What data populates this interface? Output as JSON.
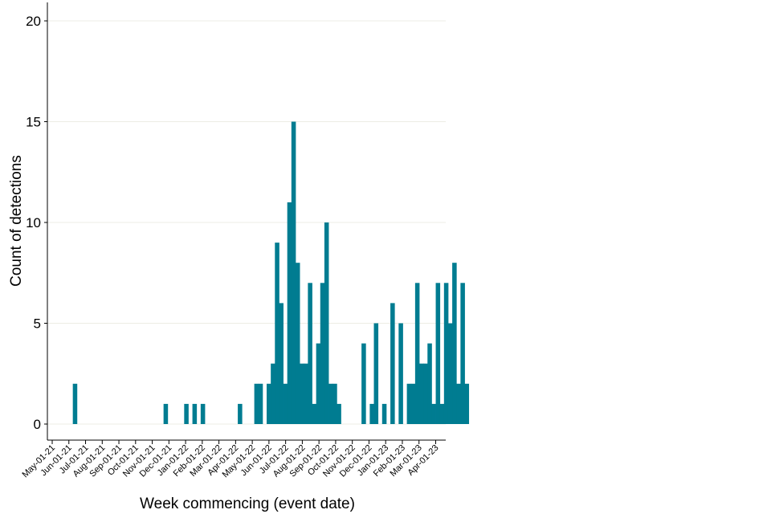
{
  "chart_data": {
    "type": "bar",
    "title": "",
    "xlabel": "Week commencing (event date)",
    "ylabel": "Count of detections",
    "ylim": [
      0,
      20
    ],
    "yticks": [
      0,
      5,
      10,
      15,
      20
    ],
    "grid": "horizontal",
    "bar_color": "#007C91",
    "x_tick_labels": [
      "May-01-21",
      "Jun-01-21",
      "Jul-01-21",
      "Aug-01-21",
      "Sep-01-21",
      "Oct-01-21",
      "Nov-01-21",
      "Dec-01-21",
      "Jan-01-22",
      "Feb-01-22",
      "Mar-01-22",
      "Apr-01-22",
      "May-01-22",
      "Jun-01-22",
      "Jul-01-22",
      "Aug-01-22",
      "Sep-01-22",
      "Oct-01-22",
      "Nov-01-22",
      "Dec-01-22",
      "Jan-01-23",
      "Feb-01-23",
      "Mar-01-23",
      "Apr-01-23"
    ],
    "series": [
      {
        "name": "Detections",
        "weekly_counts": [
          0,
          0,
          0,
          0,
          0,
          2,
          0,
          0,
          0,
          0,
          0,
          0,
          0,
          0,
          0,
          0,
          0,
          0,
          0,
          0,
          0,
          0,
          0,
          0,
          0,
          0,
          0,
          1,
          0,
          0,
          0,
          0,
          1,
          0,
          1,
          0,
          1,
          0,
          0,
          0,
          0,
          0,
          0,
          0,
          0,
          1,
          0,
          0,
          0,
          2,
          2,
          0,
          2,
          3,
          9,
          6,
          2,
          11,
          15,
          8,
          3,
          3,
          7,
          1,
          4,
          7,
          10,
          2,
          2,
          1,
          0,
          0,
          0,
          0,
          0,
          4,
          0,
          1,
          5,
          0,
          1,
          0,
          6,
          0,
          5,
          0,
          2,
          2,
          7,
          3,
          3,
          4,
          1,
          7,
          1,
          7,
          5,
          8,
          2,
          7,
          2,
          0,
          0,
          0
        ]
      }
    ]
  }
}
